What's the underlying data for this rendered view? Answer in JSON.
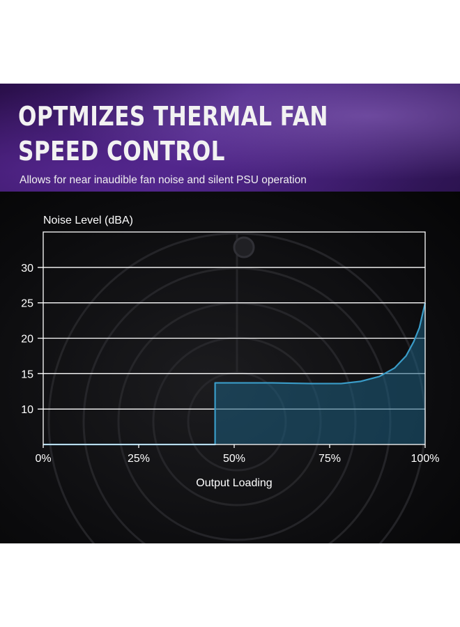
{
  "header": {
    "title": "OPTMIZES THERMAL FAN SPEED CONTROL",
    "subtitle": "Allows for near inaudible fan noise and silent PSU operation"
  },
  "colors": {
    "banner_purple": "#4a2583",
    "curve_stroke": "#3a9cc8",
    "fill": "#1e5f80",
    "grid": "#ffffff"
  },
  "chart_data": {
    "type": "area",
    "title": "",
    "ylabel": "Noise Level (dBA)",
    "xlabel": "Output Loading",
    "xlim": [
      0,
      100
    ],
    "ylim": [
      5,
      35
    ],
    "x_ticks": [
      "0%",
      "25%",
      "50%",
      "75%",
      "100%"
    ],
    "y_ticks": [
      "10",
      "15",
      "20",
      "25",
      "30"
    ],
    "grid": "horizontal",
    "series": [
      {
        "x": [
          0,
          45,
          45,
          60,
          70,
          78,
          83,
          88,
          92,
          95,
          97,
          98.5,
          100
        ],
        "y": [
          5,
          5,
          13.7,
          13.7,
          13.6,
          13.6,
          13.9,
          14.6,
          15.8,
          17.5,
          19.5,
          21.5,
          25
        ]
      }
    ]
  }
}
